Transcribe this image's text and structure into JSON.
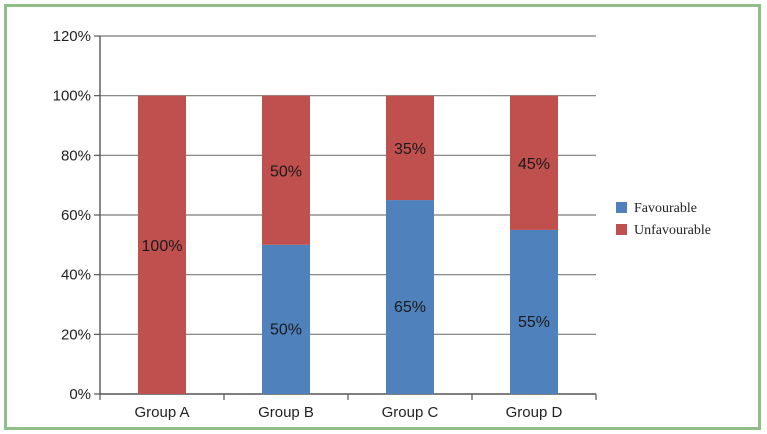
{
  "chart_data": {
    "type": "bar",
    "stacked": true,
    "categories": [
      "Group A",
      "Group B",
      "Group C",
      "Group D"
    ],
    "series": [
      {
        "name": "Favourable",
        "values": [
          0,
          50,
          65,
          55
        ],
        "color": "#4f81bd"
      },
      {
        "name": "Unfavourable",
        "values": [
          100,
          50,
          35,
          45
        ],
        "color": "#c0504d"
      }
    ],
    "data_labels": {
      "Favourable": [
        "",
        "50%",
        "65%",
        "55%"
      ],
      "Unfavourable": [
        "100%",
        "50%",
        "35%",
        "45%"
      ]
    },
    "yticks": [
      "0%",
      "20%",
      "40%",
      "60%",
      "80%",
      "100%",
      "120%"
    ],
    "ytick_values": [
      0,
      20,
      40,
      60,
      80,
      100,
      120
    ],
    "ylim": [
      0,
      120
    ],
    "grid": true,
    "legend_position": "right",
    "title": "",
    "xlabel": "",
    "ylabel": ""
  }
}
